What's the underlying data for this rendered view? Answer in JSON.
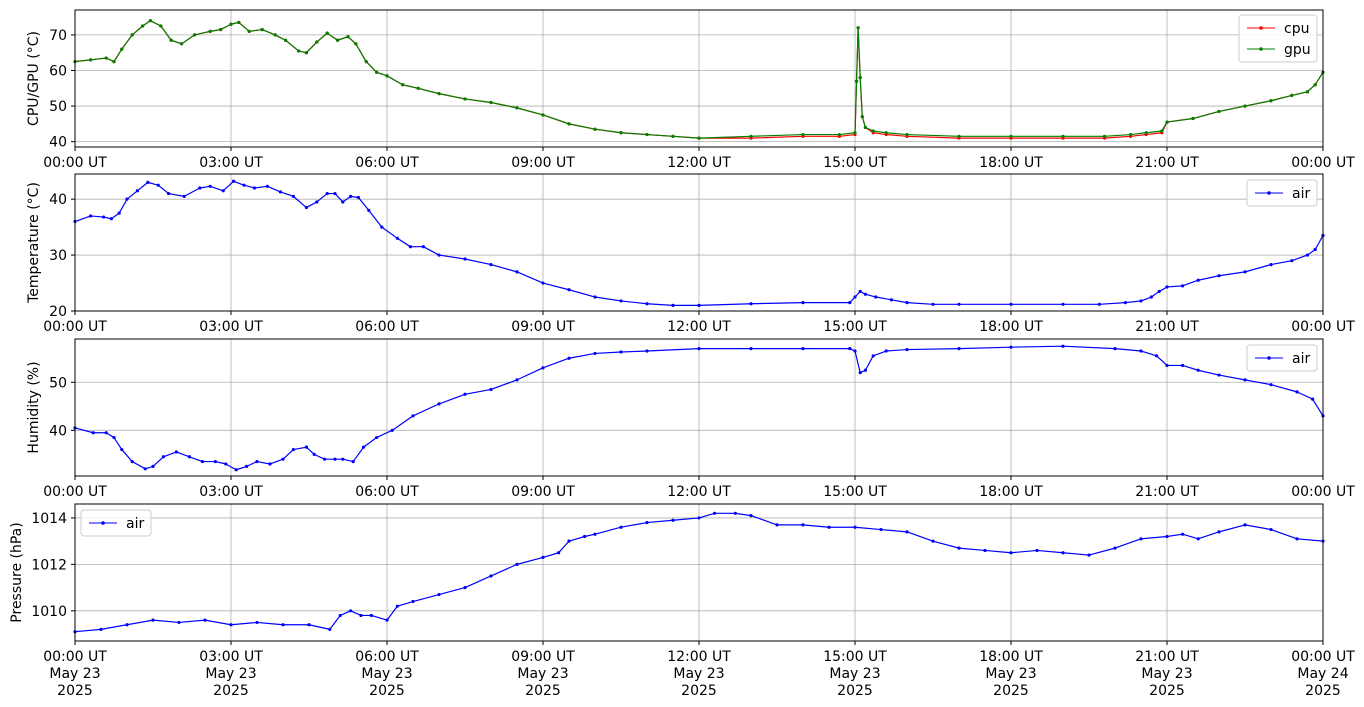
{
  "colors": {
    "cpu": "#ff0000",
    "gpu": "#008000",
    "air": "#0000ff",
    "grid": "#b0b0b0"
  },
  "chart_data": [
    {
      "type": "line",
      "ylabel": "CPU/GPU (°C)",
      "xlim": [
        0,
        24
      ],
      "ylim": [
        38.5,
        77
      ],
      "yticks": [
        40,
        50,
        60,
        70
      ],
      "xticks": [
        0,
        3,
        6,
        9,
        12,
        15,
        18,
        21,
        24
      ],
      "xtick_labels": [
        "00:00 UT",
        "03:00 UT",
        "06:00 UT",
        "09:00 UT",
        "12:00 UT",
        "15:00 UT",
        "18:00 UT",
        "21:00 UT",
        "00:00 UT"
      ],
      "grid": true,
      "legend_placement": "top-right",
      "series": [
        {
          "name": "cpu",
          "color": "#ff0000",
          "x": [
            0,
            0.3,
            0.6,
            0.75,
            0.9,
            1.1,
            1.3,
            1.45,
            1.65,
            1.85,
            2.05,
            2.3,
            2.6,
            2.8,
            3.0,
            3.15,
            3.35,
            3.6,
            3.85,
            4.05,
            4.3,
            4.45,
            4.65,
            4.85,
            5.05,
            5.25,
            5.4,
            5.6,
            5.8,
            6.0,
            6.3,
            6.6,
            7.0,
            7.5,
            8.0,
            8.5,
            9.0,
            9.5,
            10.0,
            10.5,
            11.0,
            11.5,
            12.0,
            13.0,
            14.0,
            14.7,
            15.0,
            15.03,
            15.06,
            15.1,
            15.14,
            15.2,
            15.35,
            15.6,
            16.0,
            17.0,
            18.0,
            19.0,
            19.8,
            20.3,
            20.6,
            20.9,
            21.0,
            21.5,
            22.0,
            22.5,
            23.0,
            23.4,
            23.7,
            23.85,
            24.0
          ],
          "y": [
            62.5,
            63,
            63.5,
            62.5,
            66,
            70,
            72.5,
            74,
            72.5,
            68.5,
            67.5,
            70,
            71,
            71.5,
            73,
            73.5,
            71,
            71.5,
            70,
            68.5,
            65.5,
            65,
            68,
            70.5,
            68.5,
            69.5,
            67.5,
            62.5,
            59.5,
            58.5,
            56,
            55,
            53.5,
            52,
            51,
            49.5,
            47.5,
            45,
            43.5,
            42.5,
            42,
            41.5,
            41,
            41,
            41.5,
            41.5,
            42,
            57,
            72,
            58,
            47,
            44,
            42.5,
            42,
            41.5,
            41,
            41,
            41,
            41,
            41.5,
            42,
            42.5,
            45.5,
            46.5,
            48.5,
            50,
            51.5,
            53,
            54,
            56,
            59.5
          ]
        },
        {
          "name": "gpu",
          "color": "#008000",
          "x": [
            0,
            0.3,
            0.6,
            0.75,
            0.9,
            1.1,
            1.3,
            1.45,
            1.65,
            1.85,
            2.05,
            2.3,
            2.6,
            2.8,
            3.0,
            3.15,
            3.35,
            3.6,
            3.85,
            4.05,
            4.3,
            4.45,
            4.65,
            4.85,
            5.05,
            5.25,
            5.4,
            5.6,
            5.8,
            6.0,
            6.3,
            6.6,
            7.0,
            7.5,
            8.0,
            8.5,
            9.0,
            9.5,
            10.0,
            10.5,
            11.0,
            11.5,
            12.0,
            13.0,
            14.0,
            14.7,
            15.0,
            15.03,
            15.06,
            15.1,
            15.14,
            15.2,
            15.35,
            15.6,
            16.0,
            17.0,
            18.0,
            19.0,
            19.8,
            20.3,
            20.6,
            20.9,
            21.0,
            21.5,
            22.0,
            22.5,
            23.0,
            23.4,
            23.7,
            23.85,
            24.0
          ],
          "y": [
            62.5,
            63,
            63.5,
            62.5,
            66,
            70,
            72.5,
            74,
            72.5,
            68.5,
            67.5,
            70,
            71,
            71.5,
            73,
            73.5,
            71,
            71.5,
            70,
            68.5,
            65.5,
            65,
            68,
            70.5,
            68.5,
            69.5,
            67.5,
            62.5,
            59.5,
            58.5,
            56,
            55,
            53.5,
            52,
            51,
            49.5,
            47.5,
            45,
            43.5,
            42.5,
            42,
            41.5,
            41,
            41.5,
            42,
            42,
            42.5,
            57,
            72,
            58,
            47,
            44,
            43,
            42.5,
            42,
            41.5,
            41.5,
            41.5,
            41.5,
            42,
            42.5,
            43,
            45.5,
            46.5,
            48.5,
            50,
            51.5,
            53,
            54,
            56,
            59.5
          ]
        }
      ]
    },
    {
      "type": "line",
      "ylabel": "Temperature (°C)",
      "xlim": [
        0,
        24
      ],
      "ylim": [
        20,
        44.5
      ],
      "yticks": [
        20,
        30,
        40
      ],
      "xticks": [
        0,
        3,
        6,
        9,
        12,
        15,
        18,
        21,
        24
      ],
      "xtick_labels": [
        "00:00 UT",
        "03:00 UT",
        "06:00 UT",
        "09:00 UT",
        "12:00 UT",
        "15:00 UT",
        "18:00 UT",
        "21:00 UT",
        "00:00 UT"
      ],
      "grid": true,
      "legend_placement": "top-right",
      "series": [
        {
          "name": "air",
          "color": "#0000ff",
          "x": [
            0,
            0.3,
            0.55,
            0.7,
            0.85,
            1.0,
            1.2,
            1.4,
            1.6,
            1.8,
            2.1,
            2.4,
            2.6,
            2.85,
            3.05,
            3.25,
            3.45,
            3.7,
            3.95,
            4.2,
            4.45,
            4.65,
            4.85,
            5.0,
            5.15,
            5.3,
            5.45,
            5.65,
            5.9,
            6.2,
            6.45,
            6.7,
            7.0,
            7.5,
            8.0,
            8.5,
            9.0,
            9.5,
            10.0,
            10.5,
            11.0,
            11.5,
            12.0,
            13.0,
            14.0,
            14.9,
            15.0,
            15.1,
            15.2,
            15.4,
            15.7,
            16.0,
            16.5,
            17.0,
            18.0,
            19.0,
            19.7,
            20.2,
            20.5,
            20.7,
            20.85,
            21.0,
            21.3,
            21.6,
            22.0,
            22.5,
            23.0,
            23.4,
            23.7,
            23.85,
            24.0
          ],
          "y": [
            36,
            37,
            36.8,
            36.5,
            37.5,
            40,
            41.5,
            43,
            42.5,
            41,
            40.5,
            42,
            42.3,
            41.5,
            43.2,
            42.5,
            42,
            42.3,
            41.3,
            40.5,
            38.5,
            39.5,
            41,
            41,
            39.5,
            40.5,
            40.3,
            38,
            35,
            33,
            31.5,
            31.5,
            30,
            29.3,
            28.3,
            27,
            25,
            23.8,
            22.5,
            21.8,
            21.3,
            21,
            21,
            21.3,
            21.5,
            21.5,
            22.5,
            23.5,
            23,
            22.5,
            22,
            21.5,
            21.2,
            21.2,
            21.2,
            21.2,
            21.2,
            21.5,
            21.8,
            22.5,
            23.5,
            24.3,
            24.5,
            25.5,
            26.3,
            27,
            28.3,
            29,
            30,
            31,
            33.5
          ]
        }
      ]
    },
    {
      "type": "line",
      "ylabel": "Humidity (%)",
      "xlim": [
        0,
        24
      ],
      "ylim": [
        30.5,
        59
      ],
      "yticks": [
        40,
        50
      ],
      "xticks": [
        0,
        3,
        6,
        9,
        12,
        15,
        18,
        21,
        24
      ],
      "xtick_labels": [
        "00:00 UT",
        "03:00 UT",
        "06:00 UT",
        "09:00 UT",
        "12:00 UT",
        "15:00 UT",
        "18:00 UT",
        "21:00 UT",
        "00:00 UT"
      ],
      "grid": true,
      "legend_placement": "top-right",
      "series": [
        {
          "name": "air",
          "color": "#0000ff",
          "x": [
            0,
            0.35,
            0.6,
            0.75,
            0.9,
            1.1,
            1.35,
            1.5,
            1.7,
            1.95,
            2.2,
            2.45,
            2.7,
            2.9,
            3.1,
            3.3,
            3.5,
            3.75,
            4.0,
            4.2,
            4.45,
            4.6,
            4.8,
            5.0,
            5.15,
            5.35,
            5.55,
            5.8,
            6.1,
            6.5,
            7.0,
            7.5,
            8.0,
            8.5,
            9.0,
            9.5,
            10.0,
            10.5,
            11.0,
            12.0,
            13.0,
            14.0,
            14.9,
            15.0,
            15.1,
            15.2,
            15.35,
            15.6,
            16.0,
            17.0,
            18.0,
            19.0,
            20.0,
            20.5,
            20.8,
            21.0,
            21.3,
            21.6,
            22.0,
            22.5,
            23.0,
            23.5,
            23.8,
            24.0
          ],
          "y": [
            40.5,
            39.5,
            39.5,
            38.5,
            36,
            33.5,
            32,
            32.5,
            34.5,
            35.5,
            34.5,
            33.5,
            33.5,
            33,
            31.8,
            32.5,
            33.5,
            33,
            34,
            36,
            36.5,
            35,
            34,
            34,
            34,
            33.5,
            36.5,
            38.5,
            40,
            43,
            45.5,
            47.5,
            48.5,
            50.5,
            53,
            55,
            56,
            56.3,
            56.5,
            57,
            57,
            57,
            57,
            56.5,
            52,
            52.5,
            55.5,
            56.5,
            56.8,
            57,
            57.3,
            57.5,
            57,
            56.5,
            55.5,
            53.5,
            53.5,
            52.5,
            51.5,
            50.5,
            49.5,
            48,
            46.5,
            43
          ]
        }
      ]
    },
    {
      "type": "line",
      "ylabel": "Pressure (hPa)",
      "xlim": [
        0,
        24
      ],
      "ylim": [
        1008.7,
        1014.6
      ],
      "yticks": [
        1010,
        1012,
        1014
      ],
      "xticks": [
        0,
        3,
        6,
        9,
        12,
        15,
        18,
        21,
        24
      ],
      "xtick_labels": [
        "00:00 UT",
        "03:00 UT",
        "06:00 UT",
        "09:00 UT",
        "12:00 UT",
        "15:00 UT",
        "18:00 UT",
        "21:00 UT",
        "00:00 UT"
      ],
      "xtick_sublabels": [
        "May 23",
        "May 23",
        "May 23",
        "May 23",
        "May 23",
        "May 23",
        "May 23",
        "May 23",
        "May 24"
      ],
      "xtick_years": [
        "2025",
        "2025",
        "2025",
        "2025",
        "2025",
        "2025",
        "2025",
        "2025",
        "2025"
      ],
      "grid": true,
      "legend_placement": "top-left",
      "series": [
        {
          "name": "air",
          "color": "#0000ff",
          "x": [
            0,
            0.5,
            1.0,
            1.5,
            2.0,
            2.5,
            3.0,
            3.5,
            4.0,
            4.5,
            4.9,
            5.1,
            5.3,
            5.5,
            5.7,
            6.0,
            6.2,
            6.5,
            7.0,
            7.5,
            8.0,
            8.5,
            9.0,
            9.3,
            9.5,
            9.8,
            10.0,
            10.5,
            11.0,
            11.5,
            12.0,
            12.3,
            12.7,
            13.0,
            13.5,
            14.0,
            14.5,
            15.0,
            15.5,
            16.0,
            16.5,
            17.0,
            17.5,
            18.0,
            18.5,
            19.0,
            19.5,
            20.0,
            20.5,
            21.0,
            21.3,
            21.6,
            22.0,
            22.5,
            23.0,
            23.5,
            24.0
          ],
          "y": [
            1009.1,
            1009.2,
            1009.4,
            1009.6,
            1009.5,
            1009.6,
            1009.4,
            1009.5,
            1009.4,
            1009.4,
            1009.2,
            1009.8,
            1010,
            1009.8,
            1009.8,
            1009.6,
            1010.2,
            1010.4,
            1010.7,
            1011,
            1011.5,
            1012,
            1012.3,
            1012.5,
            1013,
            1013.2,
            1013.3,
            1013.6,
            1013.8,
            1013.9,
            1014,
            1014.2,
            1014.2,
            1014.1,
            1013.7,
            1013.7,
            1013.6,
            1013.6,
            1013.5,
            1013.4,
            1013,
            1012.7,
            1012.6,
            1012.5,
            1012.6,
            1012.5,
            1012.4,
            1012.7,
            1013.1,
            1013.2,
            1013.3,
            1013.1,
            1013.4,
            1013.7,
            1013.5,
            1013.1,
            1013
          ]
        }
      ]
    }
  ]
}
